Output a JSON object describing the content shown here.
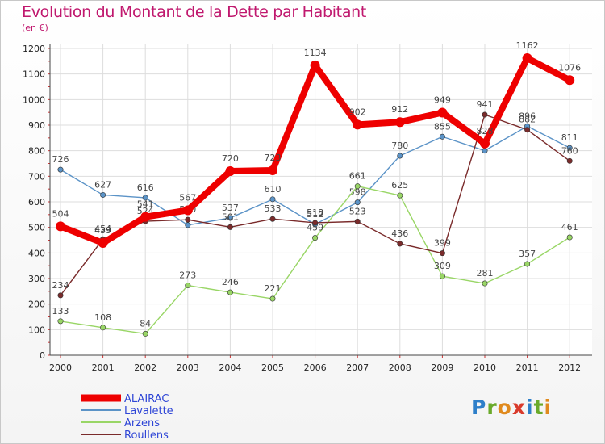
{
  "title": "Evolution du Montant de la Dette par Habitant",
  "subtitle": "(en €)",
  "logo": [
    "P",
    "r",
    "o",
    "x",
    "i",
    "t",
    "i"
  ],
  "chart_data": {
    "type": "line",
    "x": [
      "2000",
      "2001",
      "2002",
      "2003",
      "2004",
      "2005",
      "2006",
      "2007",
      "2008",
      "2009",
      "2010",
      "2011",
      "2012"
    ],
    "ylim": [
      0,
      1200
    ],
    "yticks": [
      "0",
      "100",
      "200",
      "300",
      "400",
      "500",
      "600",
      "700",
      "800",
      "900",
      "1000",
      "1100",
      "1200"
    ],
    "grid": true,
    "legend_position": "bottom-left",
    "series": [
      {
        "name": "Lavalette",
        "color": "#5b93c7",
        "values": [
          726,
          627,
          616,
          509,
          537,
          610,
          512,
          598,
          780,
          855,
          800,
          896,
          811
        ],
        "labels": [
          "726",
          "627",
          "616",
          "",
          "537",
          "610",
          "512",
          "598",
          "780",
          "855",
          "",
          "896",
          "811"
        ]
      },
      {
        "name": "Arzens",
        "color": "#99d666",
        "values": [
          133,
          108,
          84,
          273,
          246,
          221,
          459,
          661,
          625,
          309,
          281,
          357,
          461
        ],
        "labels": [
          "133",
          "108",
          "84",
          "273",
          "246",
          "221",
          "459",
          "661",
          "625",
          "309",
          "281",
          "357",
          "461"
        ]
      },
      {
        "name": "Roullens",
        "color": "#7a2b2b",
        "values": [
          234,
          454,
          524,
          530,
          501,
          533,
          518,
          523,
          436,
          399,
          941,
          882,
          760
        ],
        "labels": [
          "234",
          "454",
          "524",
          "530",
          "501",
          "533",
          "518",
          "523",
          "436",
          "399",
          "941",
          "882",
          "760"
        ]
      },
      {
        "name": "ALAIRAC",
        "color": "#ee0000",
        "values": [
          504,
          439,
          541,
          567,
          720,
          723,
          1134,
          902,
          912,
          949,
          828,
          1162,
          1076
        ],
        "labels": [
          "504",
          "439",
          "541",
          "567",
          "720",
          "723",
          "1134",
          "902",
          "912",
          "949",
          "828",
          "1162",
          "1076"
        ]
      }
    ]
  }
}
